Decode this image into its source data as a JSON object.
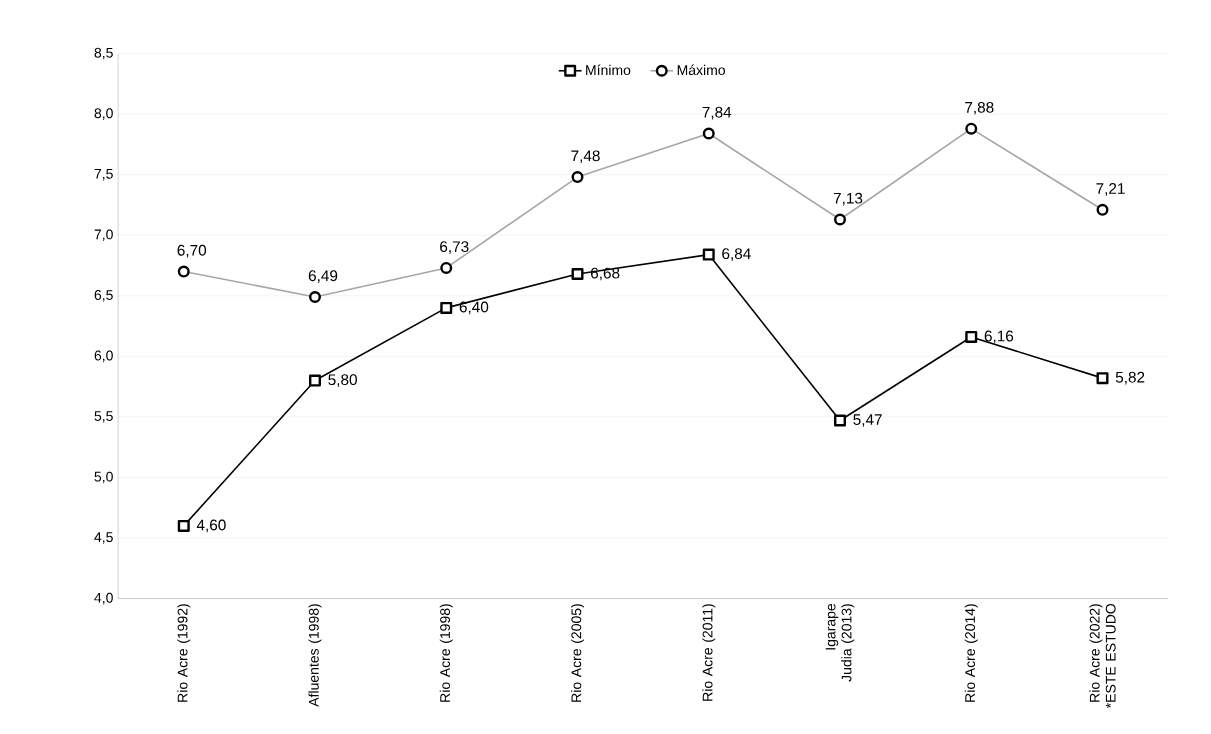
{
  "chart_data": {
    "type": "line",
    "categories": [
      "Rio Acre (1992)",
      "Afluentes (1998)",
      "Rio Acre (1998)",
      "Rio Acre (2005)",
      "Rio Acre (2011)",
      "Igarape Judia (2013)",
      "Rio Acre (2014)",
      "Rio Acre (2022) *ESTE ESTUDO"
    ],
    "series": [
      {
        "name": "Mínimo",
        "color": "#000000",
        "marker": "square",
        "values": [
          4.6,
          5.8,
          6.4,
          6.68,
          6.84,
          5.47,
          6.16,
          5.82
        ],
        "value_labels": [
          "4,60",
          "5,80",
          "6,40",
          "6,68",
          "6,84",
          "5,47",
          "6,16",
          "5,82"
        ]
      },
      {
        "name": "Máximo",
        "color": "#a6a6a6",
        "marker": "circle",
        "values": [
          6.7,
          6.49,
          6.73,
          7.48,
          7.84,
          7.13,
          7.88,
          7.21
        ],
        "value_labels": [
          "6,70",
          "6,49",
          "6,73",
          "7,48",
          "7,84",
          "7,13",
          "7,88",
          "7,21"
        ]
      }
    ],
    "ylim": [
      4.0,
      8.5
    ],
    "yticks": [
      {
        "value": 4.0,
        "label": "4,0"
      },
      {
        "value": 4.5,
        "label": "4,5"
      },
      {
        "value": 5.0,
        "label": "5,0"
      },
      {
        "value": 5.5,
        "label": "5,5"
      },
      {
        "value": 6.0,
        "label": "6,0"
      },
      {
        "value": 6.5,
        "label": "6,5"
      },
      {
        "value": 7.0,
        "label": "7,0"
      },
      {
        "value": 7.5,
        "label": "7,5"
      },
      {
        "value": 8.0,
        "label": "8,0"
      },
      {
        "value": 8.5,
        "label": "8,5"
      }
    ],
    "grid": "y",
    "legend": "top",
    "line_style": "solid"
  }
}
